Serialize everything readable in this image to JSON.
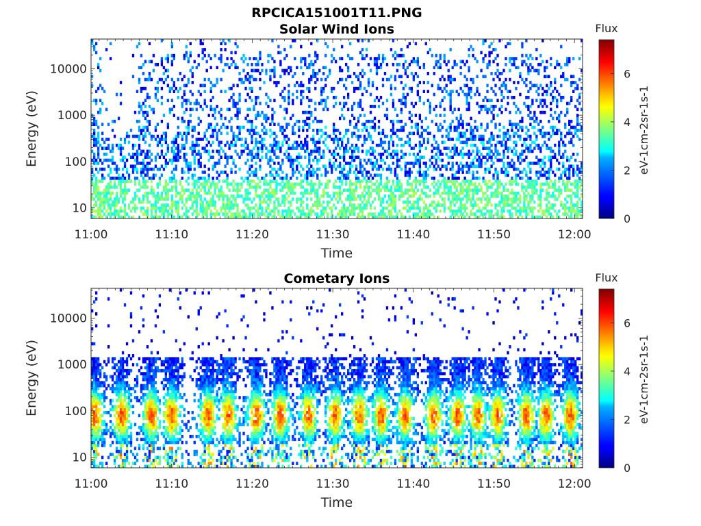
{
  "figure": {
    "title": "RPCICA151001T11.PNG"
  },
  "chart_data": [
    {
      "type": "heatmap",
      "title": "Solar Wind Ions",
      "xlabel": "Time",
      "ylabel": "Energy (eV)",
      "x_ticks": [
        "11:00",
        "11:10",
        "11:20",
        "11:30",
        "11:40",
        "11:50",
        "12:00"
      ],
      "x_range_minutes": [
        0,
        61
      ],
      "y_scale": "log",
      "y_ticks": [
        10,
        100,
        1000,
        10000
      ],
      "y_tick_labels": [
        "10",
        "100",
        "1000",
        "10000"
      ],
      "ylim": [
        5.9,
        44000
      ],
      "colorbar": {
        "title": "Flux",
        "label": "eV-1cm-2sr-1s-1",
        "range": [
          0,
          7.4
        ],
        "ticks": [
          0,
          2,
          4,
          6
        ],
        "colormap": "jet"
      },
      "description_bands": [
        {
          "energy_range_eV": [
            6,
            40
          ],
          "flux_level": 3.5
        },
        {
          "energy_range_eV": [
            40,
            600
          ],
          "flux_level": 1.8
        },
        {
          "energy_range_eV": [
            600,
            40000
          ],
          "flux_level": 1.5
        }
      ]
    },
    {
      "type": "heatmap",
      "title": "Cometary Ions",
      "xlabel": "Time",
      "ylabel": "Energy (eV)",
      "x_ticks": [
        "11:00",
        "11:10",
        "11:20",
        "11:30",
        "11:40",
        "11:50",
        "12:00"
      ],
      "x_range_minutes": [
        0,
        61
      ],
      "y_scale": "log",
      "y_ticks": [
        10,
        100,
        1000,
        10000
      ],
      "y_tick_labels": [
        "10",
        "100",
        "1000",
        "10000"
      ],
      "ylim": [
        5.9,
        44000
      ],
      "colorbar": {
        "title": "Flux",
        "label": "eV-1cm-2sr-1s-1",
        "range": [
          0,
          7.4
        ],
        "ticks": [
          0,
          2,
          4,
          6
        ],
        "colormap": "jet"
      },
      "bursts_minutes": [
        0.5,
        3.8,
        7.5,
        10,
        14.5,
        17,
        20.5,
        23.5,
        27,
        30.3,
        33.3,
        36,
        39,
        42.5,
        45.5,
        48,
        50.5,
        54,
        56.5,
        59.5
      ],
      "peak_flux": 6.0,
      "peak_energy_eV": [
        30,
        200
      ]
    }
  ]
}
